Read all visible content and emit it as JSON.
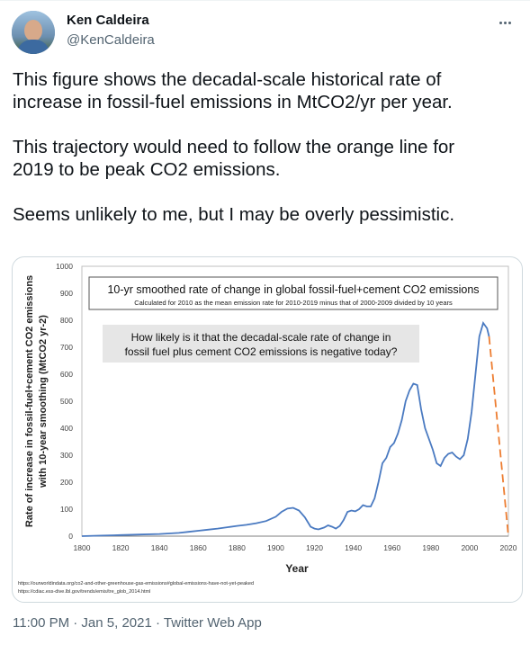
{
  "author": {
    "name": "Ken Caldeira",
    "handle": "@KenCaldeira"
  },
  "tweet": {
    "paragraphs": [
      [
        "This figure shows the decadal-scale historical rate of",
        "increase in fossil-fuel emissions in MtCO2/yr per year."
      ],
      [
        "This trajectory would need to follow the orange line for",
        "2019 to be peak CO2 emissions."
      ],
      [
        "Seems unlikely to me, but I may be overly pessimistic."
      ]
    ],
    "timestamp": "11:00 PM · Jan 5, 2021 · Twitter Web App"
  },
  "colors": {
    "series": "#4a7ac1",
    "projection": "#ed7d31",
    "note_box": "#e6e6e6"
  },
  "chart_data": {
    "type": "line",
    "title": "10-yr smoothed rate of change in global fossil-fuel+cement CO2 emissions",
    "subtitle": "Calculated for 2010 as the mean emission rate for 2010-2019 minus that of 2000-2009 divided by 10 years",
    "question_line1": "How likely is it that the decadal-scale rate of change in",
    "question_line2": "fossil fuel plus cement CO2 emissions is negative today?",
    "ylabel_line1": "Rate of increase in fossil-fuel+cement CO2 emissions",
    "ylabel_line2": "with 10-year smoothing (MtCO2 yr-2)",
    "xlabel": "Year",
    "xlim": [
      1800,
      2020
    ],
    "ylim": [
      0,
      1000
    ],
    "xticks": [
      1800,
      1820,
      1840,
      1860,
      1880,
      1900,
      1920,
      1940,
      1960,
      1980,
      2000,
      2020
    ],
    "yticks": [
      0,
      100,
      200,
      300,
      400,
      500,
      600,
      700,
      800,
      900,
      1000
    ],
    "grid": false,
    "series": [
      {
        "x": [
          1800,
          1810,
          1820,
          1830,
          1840,
          1850,
          1855,
          1860,
          1865,
          1870,
          1875,
          1880,
          1885,
          1890,
          1895,
          1900,
          1903,
          1906,
          1909,
          1912,
          1915,
          1918,
          1920,
          1922,
          1925,
          1927,
          1929,
          1931,
          1933,
          1935,
          1937,
          1939,
          1941,
          1943,
          1945,
          1947,
          1949,
          1951,
          1953,
          1955,
          1957,
          1959,
          1961,
          1963,
          1965,
          1967,
          1969,
          1971,
          1973,
          1975,
          1977,
          1979,
          1981,
          1983,
          1985,
          1987,
          1989,
          1991,
          1993,
          1995,
          1997,
          1999,
          2001,
          2003,
          2005,
          2007,
          2009,
          2010
        ],
        "values": [
          0,
          2,
          4,
          6,
          8,
          12,
          16,
          20,
          24,
          28,
          33,
          38,
          42,
          48,
          56,
          72,
          90,
          102,
          105,
          95,
          70,
          35,
          28,
          25,
          32,
          40,
          35,
          28,
          38,
          60,
          90,
          95,
          92,
          100,
          115,
          110,
          110,
          140,
          200,
          270,
          290,
          330,
          345,
          380,
          430,
          500,
          540,
          565,
          560,
          470,
          400,
          360,
          320,
          270,
          260,
          290,
          305,
          310,
          295,
          285,
          300,
          360,
          460,
          600,
          740,
          790,
          770,
          740
        ]
      }
    ],
    "projection": {
      "x": [
        2010,
        2020
      ],
      "values": [
        740,
        0
      ]
    },
    "source1": "https://ourworldindata.org/co2-and-other-greenhouse-gas-emissions#global-emissions-have-not-yet-peaked",
    "source2": "https://cdiac.ess-dive.lbl.gov/trends/emis/tre_glob_2014.html"
  }
}
